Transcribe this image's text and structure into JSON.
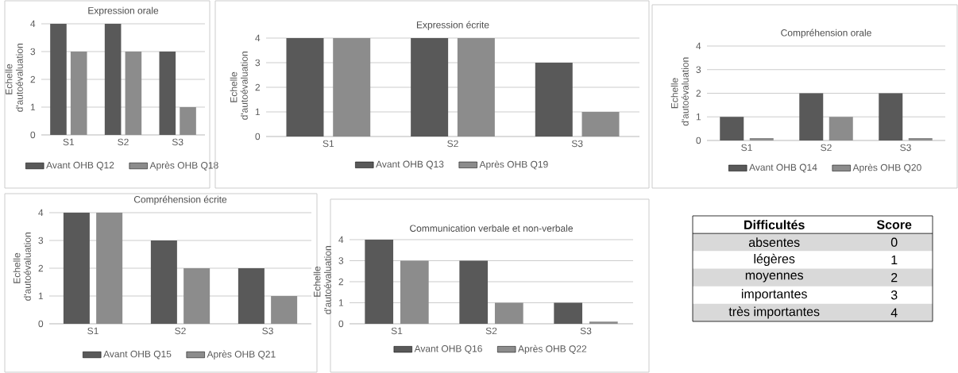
{
  "chart_data": [
    {
      "type": "bar",
      "title": "Expression orale",
      "ylabel": "Echelle d'autoévaluation",
      "categories": [
        "S1",
        "S2",
        "S3"
      ],
      "ylim": [
        0,
        4
      ],
      "yticks": [
        0,
        1,
        2,
        3,
        4
      ],
      "grid": "y",
      "legend": "bottom",
      "series": [
        {
          "name": "Avant OHB Q12",
          "color": "#595959",
          "values": [
            4,
            4,
            3
          ]
        },
        {
          "name": "Après OHB Q18",
          "color": "#8c8c8c",
          "values": [
            3,
            3,
            1
          ]
        }
      ]
    },
    {
      "type": "bar",
      "title": "Expression écrite",
      "ylabel": "Echelle d'autoévaluation",
      "categories": [
        "S1",
        "S2",
        "S3"
      ],
      "ylim": [
        0,
        4
      ],
      "yticks": [
        0,
        1,
        2,
        3,
        4
      ],
      "grid": "y",
      "legend": "bottom",
      "series": [
        {
          "name": "Avant OHB Q13",
          "color": "#595959",
          "values": [
            4,
            4,
            3
          ]
        },
        {
          "name": "Après OHB Q19",
          "color": "#8c8c8c",
          "values": [
            4,
            4,
            1
          ]
        }
      ]
    },
    {
      "type": "bar",
      "title": "Compréhension orale",
      "ylabel": "Echelle d'autoévaluation",
      "categories": [
        "S1",
        "S2",
        "S3"
      ],
      "ylim": [
        0,
        4
      ],
      "yticks": [
        0,
        1,
        2,
        3,
        4
      ],
      "grid": "y",
      "legend": "bottom",
      "series": [
        {
          "name": "Avant OHB Q14",
          "color": "#595959",
          "values": [
            1,
            2,
            2
          ]
        },
        {
          "name": "Après OHB Q20",
          "color": "#8c8c8c",
          "values": [
            0.1,
            1,
            0.1
          ]
        }
      ]
    },
    {
      "type": "bar",
      "title": "Compréhension écrite",
      "ylabel": "Echelle d'autoévaluation",
      "categories": [
        "S1",
        "S2",
        "S3"
      ],
      "ylim": [
        0,
        4
      ],
      "yticks": [
        0,
        1,
        2,
        3,
        4
      ],
      "grid": "y",
      "legend": "bottom",
      "series": [
        {
          "name": "Avant OHB Q15",
          "color": "#595959",
          "values": [
            4,
            3,
            2
          ]
        },
        {
          "name": "Après OHB Q21",
          "color": "#8c8c8c",
          "values": [
            4,
            2,
            1
          ]
        }
      ]
    },
    {
      "type": "bar",
      "title": "Communication verbale et non-verbale",
      "ylabel": "Echelle d'autoévaluation",
      "categories": [
        "S1",
        "S2",
        "S3"
      ],
      "ylim": [
        0,
        4
      ],
      "yticks": [
        0,
        1,
        2,
        3,
        4
      ],
      "grid": "y",
      "legend": "bottom",
      "series": [
        {
          "name": "Avant OHB Q16",
          "color": "#595959",
          "values": [
            4,
            3,
            1
          ]
        },
        {
          "name": "Après OHB Q22",
          "color": "#8c8c8c",
          "values": [
            3,
            1,
            0.1
          ]
        }
      ]
    },
    {
      "type": "other",
      "xlabel": "Difficultés",
      "ylabel": "Score",
      "categories": [
        "absentes",
        "légères",
        "moyennes",
        "importantes",
        "très importantes"
      ],
      "values": [
        0,
        1,
        2,
        3,
        4
      ],
      "data_labels": true
    }
  ]
}
